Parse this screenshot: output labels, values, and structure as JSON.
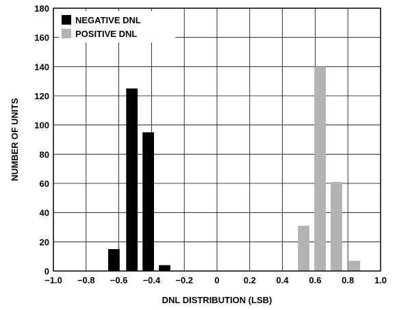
{
  "chart_data": {
    "type": "bar",
    "xlabel": "DNL DISTRIBUTION (LSB)",
    "ylabel": "NUMBER OF UNITS",
    "xlim": [
      -1.0,
      1.0
    ],
    "ylim": [
      0,
      180
    ],
    "x_ticks": [
      "−1.0",
      "−0.8",
      "−0.6",
      "−0.4",
      "−0.2",
      "0",
      "0.2",
      "0.4",
      "0.6",
      "0.8",
      "1.0"
    ],
    "x_tick_values": [
      -1.0,
      -0.8,
      -0.6,
      -0.4,
      -0.2,
      0,
      0.2,
      0.4,
      0.6,
      0.8,
      1.0
    ],
    "y_ticks": [
      0,
      20,
      40,
      60,
      80,
      100,
      120,
      140,
      160,
      180
    ],
    "grid": true,
    "legend_position": "top-left",
    "bar_width": 0.07,
    "series": [
      {
        "name": "NEGATIVE DNL",
        "color": "#000000",
        "x": [
          -0.63,
          -0.52,
          -0.42,
          -0.32
        ],
        "values": [
          15,
          125,
          95,
          4
        ]
      },
      {
        "name": "POSITIVE DNL",
        "color": "#b3b3b3",
        "x": [
          0.53,
          0.63,
          0.73,
          0.84
        ],
        "values": [
          31,
          140,
          61,
          7
        ]
      }
    ]
  }
}
